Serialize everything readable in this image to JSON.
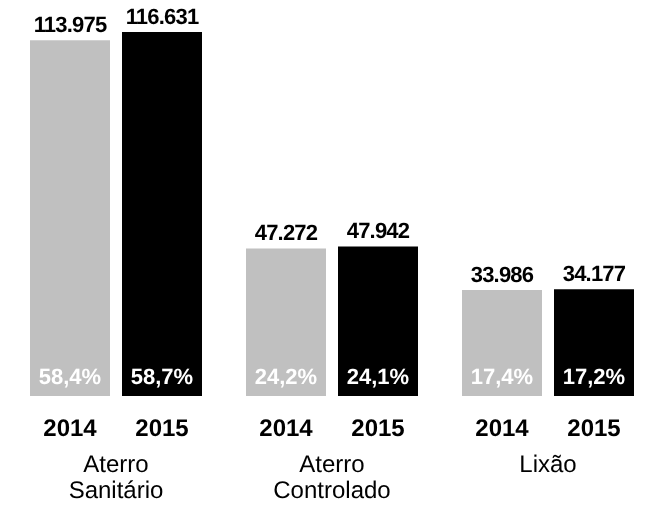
{
  "chart_data": {
    "type": "bar",
    "categories": [
      "Aterro Sanitário",
      "Aterro Controlado",
      "Lixão"
    ],
    "series": [
      {
        "name": "2014",
        "color": "#c0c0c0",
        "values": [
          113975,
          47272,
          33986
        ],
        "value_labels": [
          "113.975",
          "47.272",
          "33.986"
        ]
      },
      {
        "name": "2015",
        "color": "#000000",
        "values": [
          116631,
          47942,
          34177
        ],
        "value_labels": [
          "116.631",
          "47.942",
          "34.177"
        ]
      }
    ],
    "annotations": [
      "58,4%",
      "58,7%",
      "24,2%",
      "24,1%",
      "17,4%",
      "17,2%"
    ],
    "grid": false,
    "legend": false
  }
}
